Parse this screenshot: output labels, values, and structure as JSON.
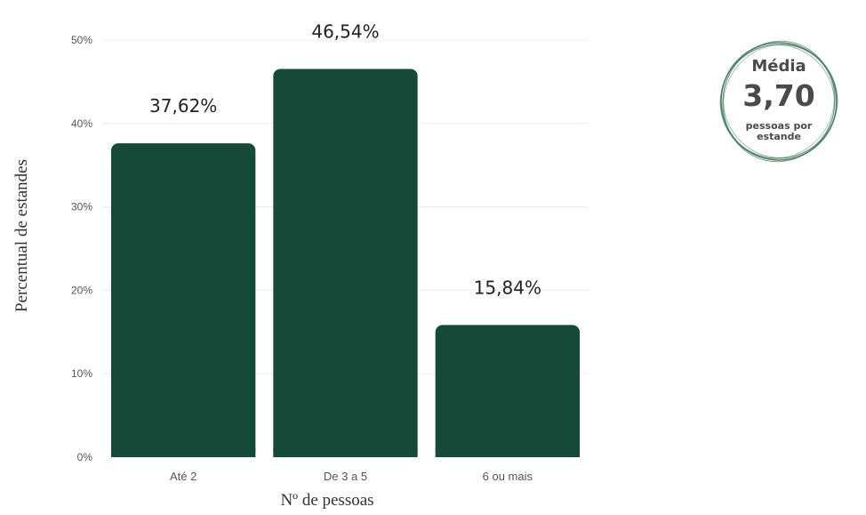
{
  "chart_data": {
    "type": "bar",
    "categories": [
      "Até 2",
      "De 3 a 5",
      "6 ou mais"
    ],
    "values": [
      37.62,
      46.54,
      15.84
    ],
    "value_labels": [
      "37,62%",
      "46,54%",
      "15,84%"
    ],
    "xlabel": "Nº de pessoas",
    "ylabel": "Percentual de estandes",
    "ylim": [
      0,
      50
    ],
    "yticks": [
      0,
      10,
      20,
      30,
      40,
      50
    ],
    "ytick_labels": [
      "0%",
      "10%",
      "20%",
      "30%",
      "40%",
      "50%"
    ],
    "grid": true,
    "bar_color": "#154a39"
  },
  "badge": {
    "title": "Média",
    "value": "3,70",
    "caption": "pessoas por estande",
    "ring_color": "#3f7a5c"
  }
}
